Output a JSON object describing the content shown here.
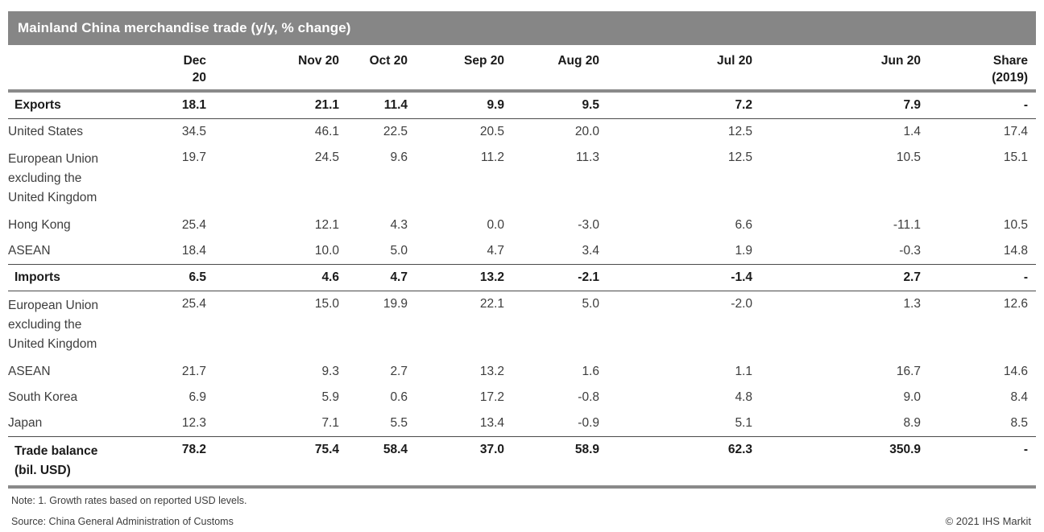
{
  "colors": {
    "title_bar_bg": "#868686",
    "title_text": "#ffffff",
    "heavy_rule": "#8a8a8a",
    "thin_rule": "#4a4a4a",
    "bold_text": "#1a1a1a",
    "body_text": "#3d3d3d"
  },
  "chart_data": {
    "type": "table",
    "title": "Mainland China merchandise trade (y/y, % change)",
    "columns": [
      "Dec 20",
      "Nov 20",
      "Oct 20",
      "Sep 20",
      "Aug 20",
      "Jul 20",
      "Jun 20",
      "Share"
    ],
    "share_year": "(2019)",
    "value_unit": "y/y % change; Share column = % share of 2019; Trade balance in bil. USD",
    "rows": [
      {
        "label": "Exports",
        "type": "section",
        "values": [
          "18.1",
          "21.1",
          "11.4",
          "9.9",
          "9.5",
          "7.2",
          "7.9",
          "-"
        ]
      },
      {
        "label": "United States",
        "type": "detail",
        "values": [
          "34.5",
          "46.1",
          "22.5",
          "20.5",
          "20.0",
          "12.5",
          "1.4",
          "17.4"
        ]
      },
      {
        "label": "European Union\nexcluding the\nUnited Kingdom",
        "type": "detail",
        "values": [
          "19.7",
          "24.5",
          "9.6",
          "11.2",
          "11.3",
          "12.5",
          "10.5",
          "15.1"
        ]
      },
      {
        "label": "Hong Kong",
        "type": "detail",
        "values": [
          "25.4",
          "12.1",
          "4.3",
          "0.0",
          "-3.0",
          "6.6",
          "-11.1",
          "10.5"
        ]
      },
      {
        "label": "ASEAN",
        "type": "detail",
        "values": [
          "18.4",
          "10.0",
          "5.0",
          "4.7",
          "3.4",
          "1.9",
          "-0.3",
          "14.8"
        ]
      },
      {
        "label": "Imports",
        "type": "section",
        "values": [
          "6.5",
          "4.6",
          "4.7",
          "13.2",
          "-2.1",
          "-1.4",
          "2.7",
          "-"
        ]
      },
      {
        "label": "European Union\nexcluding the\nUnited Kingdom",
        "type": "detail",
        "values": [
          "25.4",
          "15.0",
          "19.9",
          "22.1",
          "5.0",
          "-2.0",
          "1.3",
          "12.6"
        ]
      },
      {
        "label": "ASEAN",
        "type": "detail",
        "values": [
          "21.7",
          "9.3",
          "2.7",
          "13.2",
          "1.6",
          "1.1",
          "16.7",
          "14.6"
        ]
      },
      {
        "label": "South Korea",
        "type": "detail",
        "values": [
          "6.9",
          "5.9",
          "0.6",
          "17.2",
          "-0.8",
          "4.8",
          "9.0",
          "8.4"
        ]
      },
      {
        "label": "Japan",
        "type": "detail",
        "values": [
          "12.3",
          "7.1",
          "5.5",
          "13.4",
          "-0.9",
          "5.1",
          "8.9",
          "8.5"
        ]
      },
      {
        "label": "Trade balance\n(bil. USD)",
        "type": "total",
        "values": [
          "78.2",
          "75.4",
          "58.4",
          "37.0",
          "58.9",
          "62.3",
          "350.9",
          "-"
        ]
      }
    ],
    "layout": {
      "value_alignment": "right",
      "gridlines": "horizontal rules on section and total rows only",
      "legend": "none"
    }
  },
  "footer": {
    "note": "Note: 1. Growth rates based on reported USD levels.",
    "source": "Source: China General Administration of Customs",
    "copyright": "© 2021 IHS Markit"
  }
}
